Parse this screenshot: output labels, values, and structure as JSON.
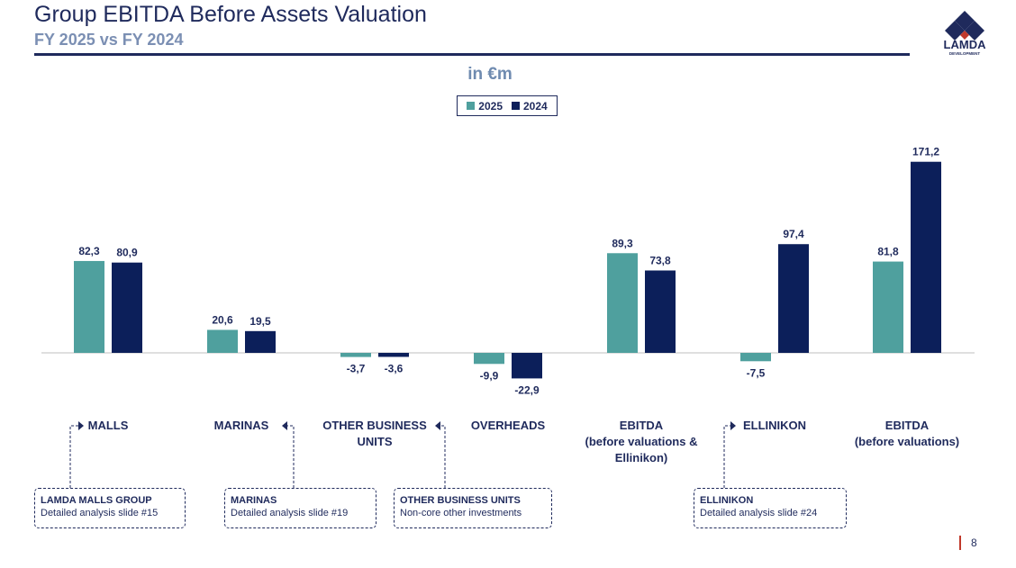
{
  "header": {
    "title": "Group EBITDA Before Assets Valuation",
    "subtitle": "FY 2025 vs FY 2024",
    "unit": "in €m"
  },
  "logo": {
    "text": "LAMDA",
    "subtext": "DEVELOPMENT"
  },
  "colors": {
    "series_2025": "#4fa09e",
    "series_2024": "#0c1f5a",
    "navy": "#1f2a5c",
    "accent": "#c0392b"
  },
  "chart_data": {
    "type": "bar",
    "categories": [
      "MALLS",
      "MARINAS",
      "OTHER BUSINESS UNITS",
      "OVERHEADS",
      "EBITDA (before valuations & Ellinikon)",
      "ELLINIKON",
      "EBITDA (before valuations)"
    ],
    "series": [
      {
        "name": "2025",
        "values": [
          82.3,
          20.6,
          -3.7,
          -9.9,
          89.3,
          -7.5,
          81.8
        ],
        "labels": [
          "82,3",
          "20,6",
          "-3,7",
          "-9,9",
          "89,3",
          "-7,5",
          "81,8"
        ]
      },
      {
        "name": "2024",
        "values": [
          80.9,
          19.5,
          -3.6,
          -22.9,
          73.8,
          97.4,
          171.2
        ],
        "labels": [
          "80,9",
          "19,5",
          "-3,6",
          "-22,9",
          "73,8",
          "97,4",
          "171,2"
        ]
      }
    ],
    "legend": [
      "2025",
      "2024"
    ],
    "legend_position": "top-center",
    "grid": false
  },
  "category_labels": [
    [
      "MALLS"
    ],
    [
      "MARINAS"
    ],
    [
      "OTHER BUSINESS",
      "UNITS"
    ],
    [
      "OVERHEADS"
    ],
    [
      "EBITDA",
      "(before valuations &",
      "Ellinikon)"
    ],
    [
      "ELLINIKON"
    ],
    [
      "EBITDA",
      "(before valuations)"
    ]
  ],
  "detail_boxes": [
    {
      "title": "LAMDA MALLS GROUP",
      "desc": "Detailed analysis slide #15"
    },
    {
      "title": "MARINAS",
      "desc": "Detailed analysis slide #19"
    },
    {
      "title": "OTHER BUSINESS UNITS",
      "desc": "Non-core other investments"
    },
    {
      "title": "ELLINIKON",
      "desc": "Detailed analysis slide #24"
    }
  ],
  "footer": {
    "page_number": "8"
  }
}
